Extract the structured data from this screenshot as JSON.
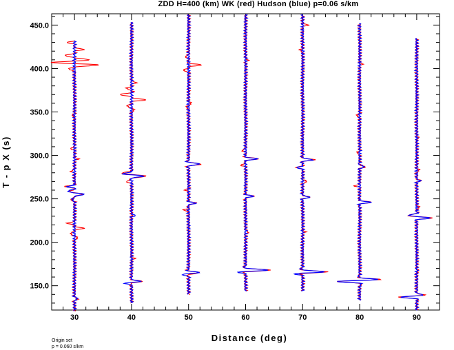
{
  "chart_data": {
    "type": "line",
    "title": "ZDD H=400 (km) WK (red) Hudson (blue) p=0.06 s/km",
    "xlabel": "Distance (deg)",
    "ylabel": "T - p X (s)",
    "xlim": [
      26,
      94
    ],
    "ylim": [
      122,
      463
    ],
    "x_ticks": [
      "30",
      "40",
      "50",
      "60",
      "70",
      "80",
      "90"
    ],
    "y_ticks": [
      "150.0",
      "200.0",
      "250.0",
      "300.0",
      "350.0",
      "400.0",
      "450.0"
    ],
    "grid": false,
    "legend": "none",
    "series": [
      {
        "name": "WK",
        "color": "#ff0000",
        "traces": [
          {
            "distance": 30,
            "start": 432,
            "end": 121,
            "events": [
              {
                "t": 430,
                "a": -1.2
              },
              {
                "t": 422,
                "a": 1.6
              },
              {
                "t": 415,
                "a": -1.8
              },
              {
                "t": 410,
                "a": 2.4
              },
              {
                "t": 407,
                "a": -3.2
              },
              {
                "t": 404,
                "a": 4.0
              },
              {
                "t": 399,
                "a": -1.0
              },
              {
                "t": 346,
                "a": -0.4
              },
              {
                "t": 308,
                "a": -0.6
              },
              {
                "t": 296,
                "a": 0.6
              },
              {
                "t": 282,
                "a": -0.6
              },
              {
                "t": 264,
                "a": -1.6
              },
              {
                "t": 259,
                "a": -0.8
              },
              {
                "t": 255,
                "a": 1.4
              },
              {
                "t": 249,
                "a": -0.6
              },
              {
                "t": 222,
                "a": -1.2
              },
              {
                "t": 216,
                "a": 1.6
              },
              {
                "t": 210,
                "a": -0.8
              },
              {
                "t": 205,
                "a": 0.6
              },
              {
                "t": 135,
                "a": 0.6
              }
            ]
          },
          {
            "distance": 40,
            "start": 453,
            "end": 130,
            "events": [
              {
                "t": 384,
                "a": 0.8
              },
              {
                "t": 377,
                "a": -1.0
              },
              {
                "t": 370,
                "a": -2.2
              },
              {
                "t": 364,
                "a": 2.5
              },
              {
                "t": 357,
                "a": -0.9
              },
              {
                "t": 352,
                "a": 0.5
              },
              {
                "t": 280,
                "a": -1.5
              },
              {
                "t": 276,
                "a": 2.6
              },
              {
                "t": 270,
                "a": -0.9
              },
              {
                "t": 181,
                "a": 0.5
              },
              {
                "t": 155,
                "a": 1.8
              }
            ]
          },
          {
            "distance": 50,
            "start": 462,
            "end": 140,
            "events": [
              {
                "t": 414,
                "a": -0.6
              },
              {
                "t": 404,
                "a": 2.2
              },
              {
                "t": 398,
                "a": -1.0
              },
              {
                "t": 360,
                "a": 0.5
              },
              {
                "t": 355,
                "a": -0.4
              },
              {
                "t": 290,
                "a": 2.3
              },
              {
                "t": 260,
                "a": -0.6
              },
              {
                "t": 245,
                "a": 1.3
              },
              {
                "t": 237,
                "a": -0.8
              },
              {
                "t": 165,
                "a": 2.0
              }
            ]
          },
          {
            "distance": 60,
            "start": 462,
            "end": 144,
            "events": [
              {
                "t": 410,
                "a": 0.4
              },
              {
                "t": 306,
                "a": -0.6
              },
              {
                "t": 296,
                "a": 2.2
              },
              {
                "t": 289,
                "a": -0.8
              },
              {
                "t": 253,
                "a": 1.4
              },
              {
                "t": 212,
                "a": 0.5
              },
              {
                "t": 168,
                "a": 4.2
              }
            ]
          },
          {
            "distance": 70,
            "start": 462,
            "end": 144,
            "events": [
              {
                "t": 450,
                "a": 0.9
              },
              {
                "t": 421,
                "a": -0.5
              },
              {
                "t": 295,
                "a": 2.0
              },
              {
                "t": 286,
                "a": -1.0
              },
              {
                "t": 270,
                "a": 0.8
              },
              {
                "t": 252,
                "a": 1.2
              },
              {
                "t": 212,
                "a": 0.4
              },
              {
                "t": 166,
                "a": 4.2
              }
            ]
          },
          {
            "distance": 80,
            "start": 452,
            "end": 133,
            "events": [
              {
                "t": 405,
                "a": 0.4
              },
              {
                "t": 346,
                "a": -0.6
              },
              {
                "t": 303,
                "a": -0.5
              },
              {
                "t": 287,
                "a": 1.0
              },
              {
                "t": 265,
                "a": -0.8
              },
              {
                "t": 246,
                "a": 2.0
              },
              {
                "t": 155,
                "a": -4.0
              },
              {
                "t": 157,
                "a": 3.5
              }
            ]
          },
          {
            "distance": 90,
            "start": 435,
            "end": 122,
            "events": [
              {
                "t": 320,
                "a": 0.3
              },
              {
                "t": 283,
                "a": 0.5
              },
              {
                "t": 271,
                "a": 0.7
              },
              {
                "t": 240,
                "a": 0.5
              },
              {
                "t": 231,
                "a": -1.4
              },
              {
                "t": 228,
                "a": 2.4
              },
              {
                "t": 167,
                "a": 0.3
              },
              {
                "t": 139,
                "a": 1.3
              },
              {
                "t": 137,
                "a": -3.0
              }
            ]
          }
        ]
      },
      {
        "name": "Hudson",
        "color": "#0000ff",
        "traces": [
          {
            "distance": 30,
            "start": 432,
            "end": 121,
            "events": [
              {
                "t": 264,
                "a": -1.2
              },
              {
                "t": 259,
                "a": -1.2
              },
              {
                "t": 255,
                "a": 1.6
              },
              {
                "t": 249,
                "a": -0.5
              },
              {
                "t": 135,
                "a": 0.6
              }
            ]
          },
          {
            "distance": 40,
            "start": 453,
            "end": 130,
            "events": [
              {
                "t": 279,
                "a": -1.3
              },
              {
                "t": 276,
                "a": 2.0
              },
              {
                "t": 231,
                "a": 0.6
              },
              {
                "t": 155,
                "a": 1.6
              },
              {
                "t": 153,
                "a": -1.0
              }
            ]
          },
          {
            "distance": 50,
            "start": 462,
            "end": 140,
            "events": [
              {
                "t": 290,
                "a": 2.0
              },
              {
                "t": 245,
                "a": 1.2
              },
              {
                "t": 165,
                "a": 1.8
              },
              {
                "t": 163,
                "a": -1.2
              }
            ]
          },
          {
            "distance": 60,
            "start": 462,
            "end": 144,
            "events": [
              {
                "t": 296,
                "a": 2.0
              },
              {
                "t": 253,
                "a": 1.3
              },
              {
                "t": 168,
                "a": 4.0
              },
              {
                "t": 166,
                "a": -1.0
              }
            ]
          },
          {
            "distance": 70,
            "start": 462,
            "end": 144,
            "events": [
              {
                "t": 295,
                "a": 1.8
              },
              {
                "t": 286,
                "a": -0.9
              },
              {
                "t": 252,
                "a": 1.2
              },
              {
                "t": 166,
                "a": 4.0
              },
              {
                "t": 164,
                "a": -1.2
              }
            ]
          },
          {
            "distance": 80,
            "start": 452,
            "end": 133,
            "events": [
              {
                "t": 287,
                "a": 0.9
              },
              {
                "t": 246,
                "a": 1.8
              },
              {
                "t": 155,
                "a": -3.8
              },
              {
                "t": 157,
                "a": 3.2
              }
            ]
          },
          {
            "distance": 90,
            "start": 435,
            "end": 122,
            "events": [
              {
                "t": 271,
                "a": 0.6
              },
              {
                "t": 231,
                "a": -1.2
              },
              {
                "t": 228,
                "a": 2.2
              },
              {
                "t": 139,
                "a": 1.2
              },
              {
                "t": 137,
                "a": -2.8
              }
            ]
          }
        ]
      }
    ]
  },
  "footer": {
    "line1": "Origin set",
    "line2": "p = 0.060 s/km"
  }
}
